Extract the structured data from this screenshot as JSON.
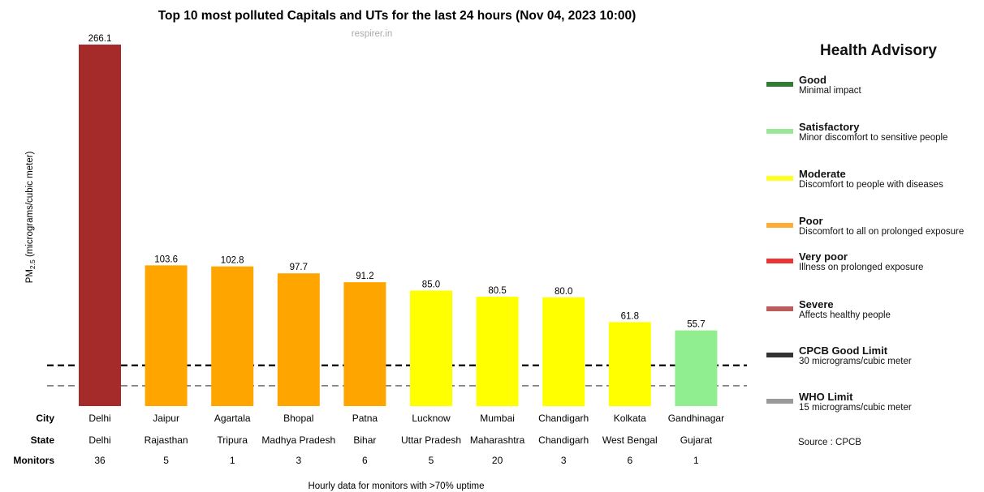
{
  "chart_data": {
    "type": "bar",
    "title": "Top 10 most polluted Capitals and UTs for the last 24 hours (Nov 04, 2023 10:00)",
    "subtitle": "respirer.in",
    "ylabel_main": "PM",
    "ylabel_sub": "2.5",
    "ylabel_rest": " (micrograms/cubic meter)",
    "footnote": "Hourly data for monitors with >70% uptime",
    "row_labels": {
      "city": "City",
      "state": "State",
      "monitors": "Monitors"
    },
    "categories": [
      "Delhi",
      "Jaipur",
      "Agartala",
      "Bhopal",
      "Patna",
      "Lucknow",
      "Mumbai",
      "Chandigarh",
      "Kolkata",
      "Gandhinagar"
    ],
    "states": [
      "Delhi",
      "Rajasthan",
      "Tripura",
      "Madhya Pradesh",
      "Bihar",
      "Uttar Pradesh",
      "Maharashtra",
      "Chandigarh",
      "West Bengal",
      "Gujarat"
    ],
    "monitors": [
      "36",
      "5",
      "1",
      "3",
      "6",
      "5",
      "20",
      "3",
      "6",
      "1"
    ],
    "values": [
      266.1,
      103.6,
      102.8,
      97.7,
      91.2,
      85.0,
      80.5,
      80.0,
      61.8,
      55.7
    ],
    "value_labels": [
      "266.1",
      "103.6",
      "102.8",
      "97.7",
      "91.2",
      "85.0",
      "80.5",
      "80.0",
      "61.8",
      "55.7"
    ],
    "bar_colors": [
      "#a52a2a",
      "#ffa500",
      "#ffa500",
      "#ffa500",
      "#ffa500",
      "#ffff00",
      "#ffff00",
      "#ffff00",
      "#ffff00",
      "#90ee90"
    ],
    "reference_lines": [
      {
        "value": 30,
        "color": "#000000"
      },
      {
        "value": 15,
        "color": "#808080"
      }
    ],
    "ylim": [
      0,
      266.1
    ],
    "grid": false
  },
  "advisory": {
    "title": "Health Advisory",
    "items": [
      {
        "label": "Good",
        "desc": "Minimal impact",
        "color": "#2e7d32"
      },
      {
        "label": "Satisfactory",
        "desc": "Minor discomfort to sensitive people",
        "color": "#98e898"
      },
      {
        "label": "Moderate",
        "desc": "Discomfort to people with diseases",
        "color": "#ffff22"
      },
      {
        "label": "Poor",
        "desc": "Discomfort to all on prolonged exposure",
        "color": "#ffad33"
      },
      {
        "label": "Very poor",
        "desc": "Illness on prolonged exposure",
        "color": "#ee3333"
      },
      {
        "label": "Severe",
        "desc": "Affects healthy people",
        "color": "#bd5c5c"
      },
      {
        "label": "CPCB Good Limit",
        "desc": "30 micrograms/cubic meter",
        "color": "#333333"
      },
      {
        "label": "WHO Limit",
        "desc": "15 micrograms/cubic meter",
        "color": "#999999"
      }
    ],
    "source": "Source : CPCB"
  }
}
